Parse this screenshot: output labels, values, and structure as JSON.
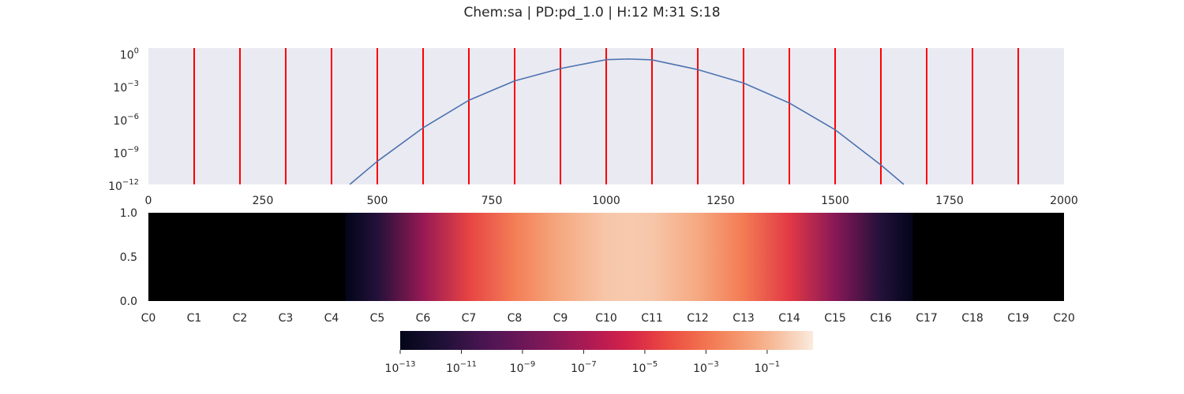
{
  "title": "Chem:sa | PD:pd_1.0 | H:12 M:31 S:18",
  "colors": {
    "panel_bg": "#eaeaf2",
    "curve": "#4c72b0",
    "red_lines": "#ff0000",
    "heat_low": "#03051a",
    "heat_high": "#faebdd"
  },
  "chart_data": [
    {
      "type": "line",
      "xlim": [
        0,
        2000
      ],
      "ylim": [
        1e-12,
        3
      ],
      "yscale": "log",
      "grid": false,
      "x_ticks": [
        "0",
        "250",
        "500",
        "750",
        "1000",
        "1250",
        "1500",
        "1750",
        "2000"
      ],
      "x_tick_values": [
        0,
        250,
        500,
        750,
        1000,
        1250,
        1500,
        1750,
        2000
      ],
      "y_ticks": [
        {
          "value": 1.0,
          "base": "10",
          "exp": "0"
        },
        {
          "value": 0.001,
          "base": "10",
          "exp": "−3"
        },
        {
          "value": 1e-06,
          "base": "10",
          "exp": "−6"
        },
        {
          "value": 1e-09,
          "base": "10",
          "exp": "−9"
        },
        {
          "value": 1e-12,
          "base": "10",
          "exp": "−12"
        }
      ],
      "vertical_lines_x": [
        100,
        200,
        300,
        400,
        500,
        600,
        700,
        800,
        900,
        1000,
        1100,
        1200,
        1300,
        1400,
        1500,
        1600,
        1700,
        1800,
        1900
      ],
      "series": [
        {
          "x": [
            440,
            500,
            600,
            700,
            800,
            900,
            1000,
            1050,
            1100,
            1200,
            1300,
            1400,
            1500,
            1600,
            1650
          ],
          "y": [
            1e-12,
            1.3e-10,
            1.5e-07,
            5e-05,
            0.003,
            0.04,
            0.26,
            0.3,
            0.25,
            0.032,
            0.0019,
            2.8e-05,
            1e-07,
            6e-11,
            1e-12
          ]
        }
      ]
    },
    {
      "type": "heatmap",
      "y_ticks": [
        "0.0",
        "0.5",
        "1.0"
      ],
      "x_labels": [
        "C0",
        "C1",
        "C2",
        "C3",
        "C4",
        "C5",
        "C6",
        "C7",
        "C8",
        "C9",
        "C10",
        "C11",
        "C12",
        "C13",
        "C14",
        "C15",
        "C16",
        "C17",
        "C18",
        "C19",
        "C20"
      ],
      "zero_regions": [
        [
          0,
          4.3
        ],
        [
          16.7,
          20
        ]
      ],
      "profile_x": [
        4.3,
        5,
        6,
        7,
        8,
        9,
        10,
        10.5,
        11,
        12,
        13,
        14,
        15,
        16,
        16.7
      ],
      "profile_logv": [
        -13,
        -11.5,
        -7.5,
        -4.5,
        -2.7,
        -1.3,
        -0.5,
        -0.4,
        -0.5,
        -1.3,
        -2.8,
        -4.8,
        -8,
        -11.5,
        -13
      ],
      "colorbar": {
        "log_min": -13,
        "log_max": 0.5,
        "ticks": [
          {
            "value": -13,
            "base": "10",
            "exp": "−13"
          },
          {
            "value": -11,
            "base": "10",
            "exp": "−11"
          },
          {
            "value": -9,
            "base": "10",
            "exp": "−9"
          },
          {
            "value": -7,
            "base": "10",
            "exp": "−7"
          },
          {
            "value": -5,
            "base": "10",
            "exp": "−5"
          },
          {
            "value": -3,
            "base": "10",
            "exp": "−3"
          },
          {
            "value": -1,
            "base": "10",
            "exp": "−1"
          }
        ]
      }
    }
  ]
}
